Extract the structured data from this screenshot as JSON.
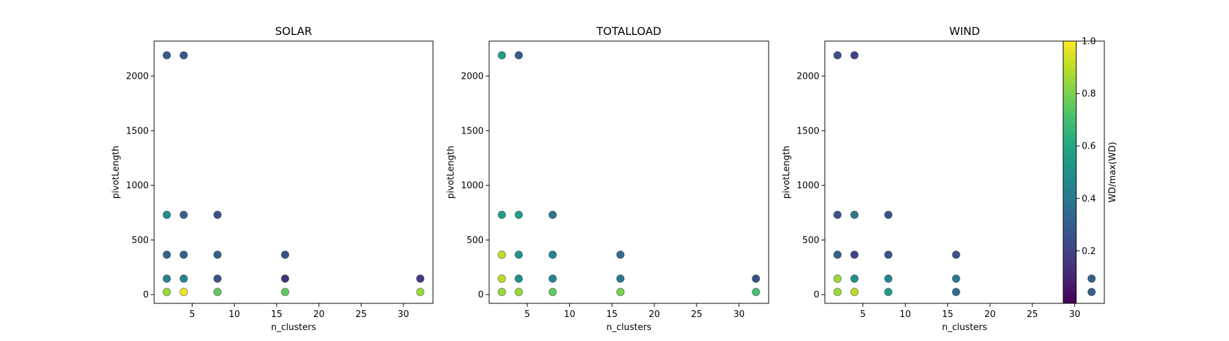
{
  "chart_data": [
    {
      "type": "scatter",
      "title": "SOLAR",
      "xlabel": "n_clusters",
      "ylabel": "pivotLength",
      "xlim": [
        0.5,
        33.5
      ],
      "ylim": [
        -80,
        2320
      ],
      "xticks": [
        5,
        10,
        15,
        20,
        25,
        30
      ],
      "yticks": [
        0,
        500,
        1000,
        1500,
        2000
      ],
      "points": [
        {
          "x": 2,
          "y": 2190,
          "c": 0.3
        },
        {
          "x": 4,
          "y": 2190,
          "c": 0.27
        },
        {
          "x": 2,
          "y": 730,
          "c": 0.48
        },
        {
          "x": 4,
          "y": 730,
          "c": 0.3
        },
        {
          "x": 8,
          "y": 730,
          "c": 0.25
        },
        {
          "x": 2,
          "y": 365,
          "c": 0.3
        },
        {
          "x": 4,
          "y": 365,
          "c": 0.3
        },
        {
          "x": 8,
          "y": 365,
          "c": 0.3
        },
        {
          "x": 16,
          "y": 365,
          "c": 0.25
        },
        {
          "x": 2,
          "y": 146,
          "c": 0.45
        },
        {
          "x": 4,
          "y": 146,
          "c": 0.45
        },
        {
          "x": 8,
          "y": 146,
          "c": 0.25
        },
        {
          "x": 16,
          "y": 146,
          "c": 0.15
        },
        {
          "x": 32,
          "y": 146,
          "c": 0.18
        },
        {
          "x": 2,
          "y": 24,
          "c": 0.85
        },
        {
          "x": 4,
          "y": 24,
          "c": 0.98
        },
        {
          "x": 8,
          "y": 24,
          "c": 0.75
        },
        {
          "x": 16,
          "y": 24,
          "c": 0.75
        },
        {
          "x": 32,
          "y": 24,
          "c": 0.85
        }
      ]
    },
    {
      "type": "scatter",
      "title": "TOTALLOAD",
      "xlabel": "n_clusters",
      "ylabel": "pivotLength",
      "xlim": [
        0.5,
        33.5
      ],
      "ylim": [
        -80,
        2320
      ],
      "xticks": [
        5,
        10,
        15,
        20,
        25,
        30
      ],
      "yticks": [
        0,
        500,
        1000,
        1500,
        2000
      ],
      "points": [
        {
          "x": 2,
          "y": 2190,
          "c": 0.55
        },
        {
          "x": 4,
          "y": 2190,
          "c": 0.3
        },
        {
          "x": 2,
          "y": 730,
          "c": 0.55
        },
        {
          "x": 4,
          "y": 730,
          "c": 0.55
        },
        {
          "x": 8,
          "y": 730,
          "c": 0.4
        },
        {
          "x": 2,
          "y": 365,
          "c": 0.9
        },
        {
          "x": 4,
          "y": 365,
          "c": 0.5
        },
        {
          "x": 8,
          "y": 365,
          "c": 0.45
        },
        {
          "x": 16,
          "y": 365,
          "c": 0.35
        },
        {
          "x": 2,
          "y": 146,
          "c": 0.9
        },
        {
          "x": 4,
          "y": 146,
          "c": 0.5
        },
        {
          "x": 8,
          "y": 146,
          "c": 0.45
        },
        {
          "x": 16,
          "y": 146,
          "c": 0.4
        },
        {
          "x": 32,
          "y": 146,
          "c": 0.25
        },
        {
          "x": 2,
          "y": 24,
          "c": 0.85
        },
        {
          "x": 4,
          "y": 24,
          "c": 0.85
        },
        {
          "x": 8,
          "y": 24,
          "c": 0.75
        },
        {
          "x": 16,
          "y": 24,
          "c": 0.8
        },
        {
          "x": 32,
          "y": 24,
          "c": 0.7
        }
      ]
    },
    {
      "type": "scatter",
      "title": "WIND",
      "xlabel": "n_clusters",
      "ylabel": "pivotLength",
      "xlim": [
        0.5,
        33.5
      ],
      "ylim": [
        -80,
        2320
      ],
      "xticks": [
        5,
        10,
        15,
        20,
        25,
        30
      ],
      "yticks": [
        0,
        500,
        1000,
        1500,
        2000
      ],
      "points": [
        {
          "x": 2,
          "y": 2190,
          "c": 0.25
        },
        {
          "x": 4,
          "y": 2190,
          "c": 0.2
        },
        {
          "x": 2,
          "y": 730,
          "c": 0.25
        },
        {
          "x": 4,
          "y": 730,
          "c": 0.4
        },
        {
          "x": 8,
          "y": 730,
          "c": 0.25
        },
        {
          "x": 2,
          "y": 365,
          "c": 0.3
        },
        {
          "x": 4,
          "y": 365,
          "c": 0.2
        },
        {
          "x": 8,
          "y": 365,
          "c": 0.25
        },
        {
          "x": 16,
          "y": 365,
          "c": 0.25
        },
        {
          "x": 2,
          "y": 146,
          "c": 0.85
        },
        {
          "x": 4,
          "y": 146,
          "c": 0.5
        },
        {
          "x": 8,
          "y": 146,
          "c": 0.45
        },
        {
          "x": 16,
          "y": 146,
          "c": 0.4
        },
        {
          "x": 32,
          "y": 146,
          "c": 0.3
        },
        {
          "x": 2,
          "y": 24,
          "c": 0.85
        },
        {
          "x": 4,
          "y": 24,
          "c": 0.9
        },
        {
          "x": 8,
          "y": 24,
          "c": 0.55
        },
        {
          "x": 16,
          "y": 24,
          "c": 0.35
        },
        {
          "x": 32,
          "y": 24,
          "c": 0.3
        }
      ]
    }
  ],
  "colorbar": {
    "label": "WD/max(WD)",
    "colormap": "viridis",
    "range": [
      0.0,
      1.0
    ],
    "ticks": [
      0.2,
      0.4,
      0.6,
      0.8,
      1.0
    ],
    "tick_labels": [
      "0.2",
      "0.4",
      "0.6",
      "0.8",
      "1.0"
    ]
  },
  "colors": {
    "marker_edge": "#555555",
    "axes": "#000000"
  }
}
